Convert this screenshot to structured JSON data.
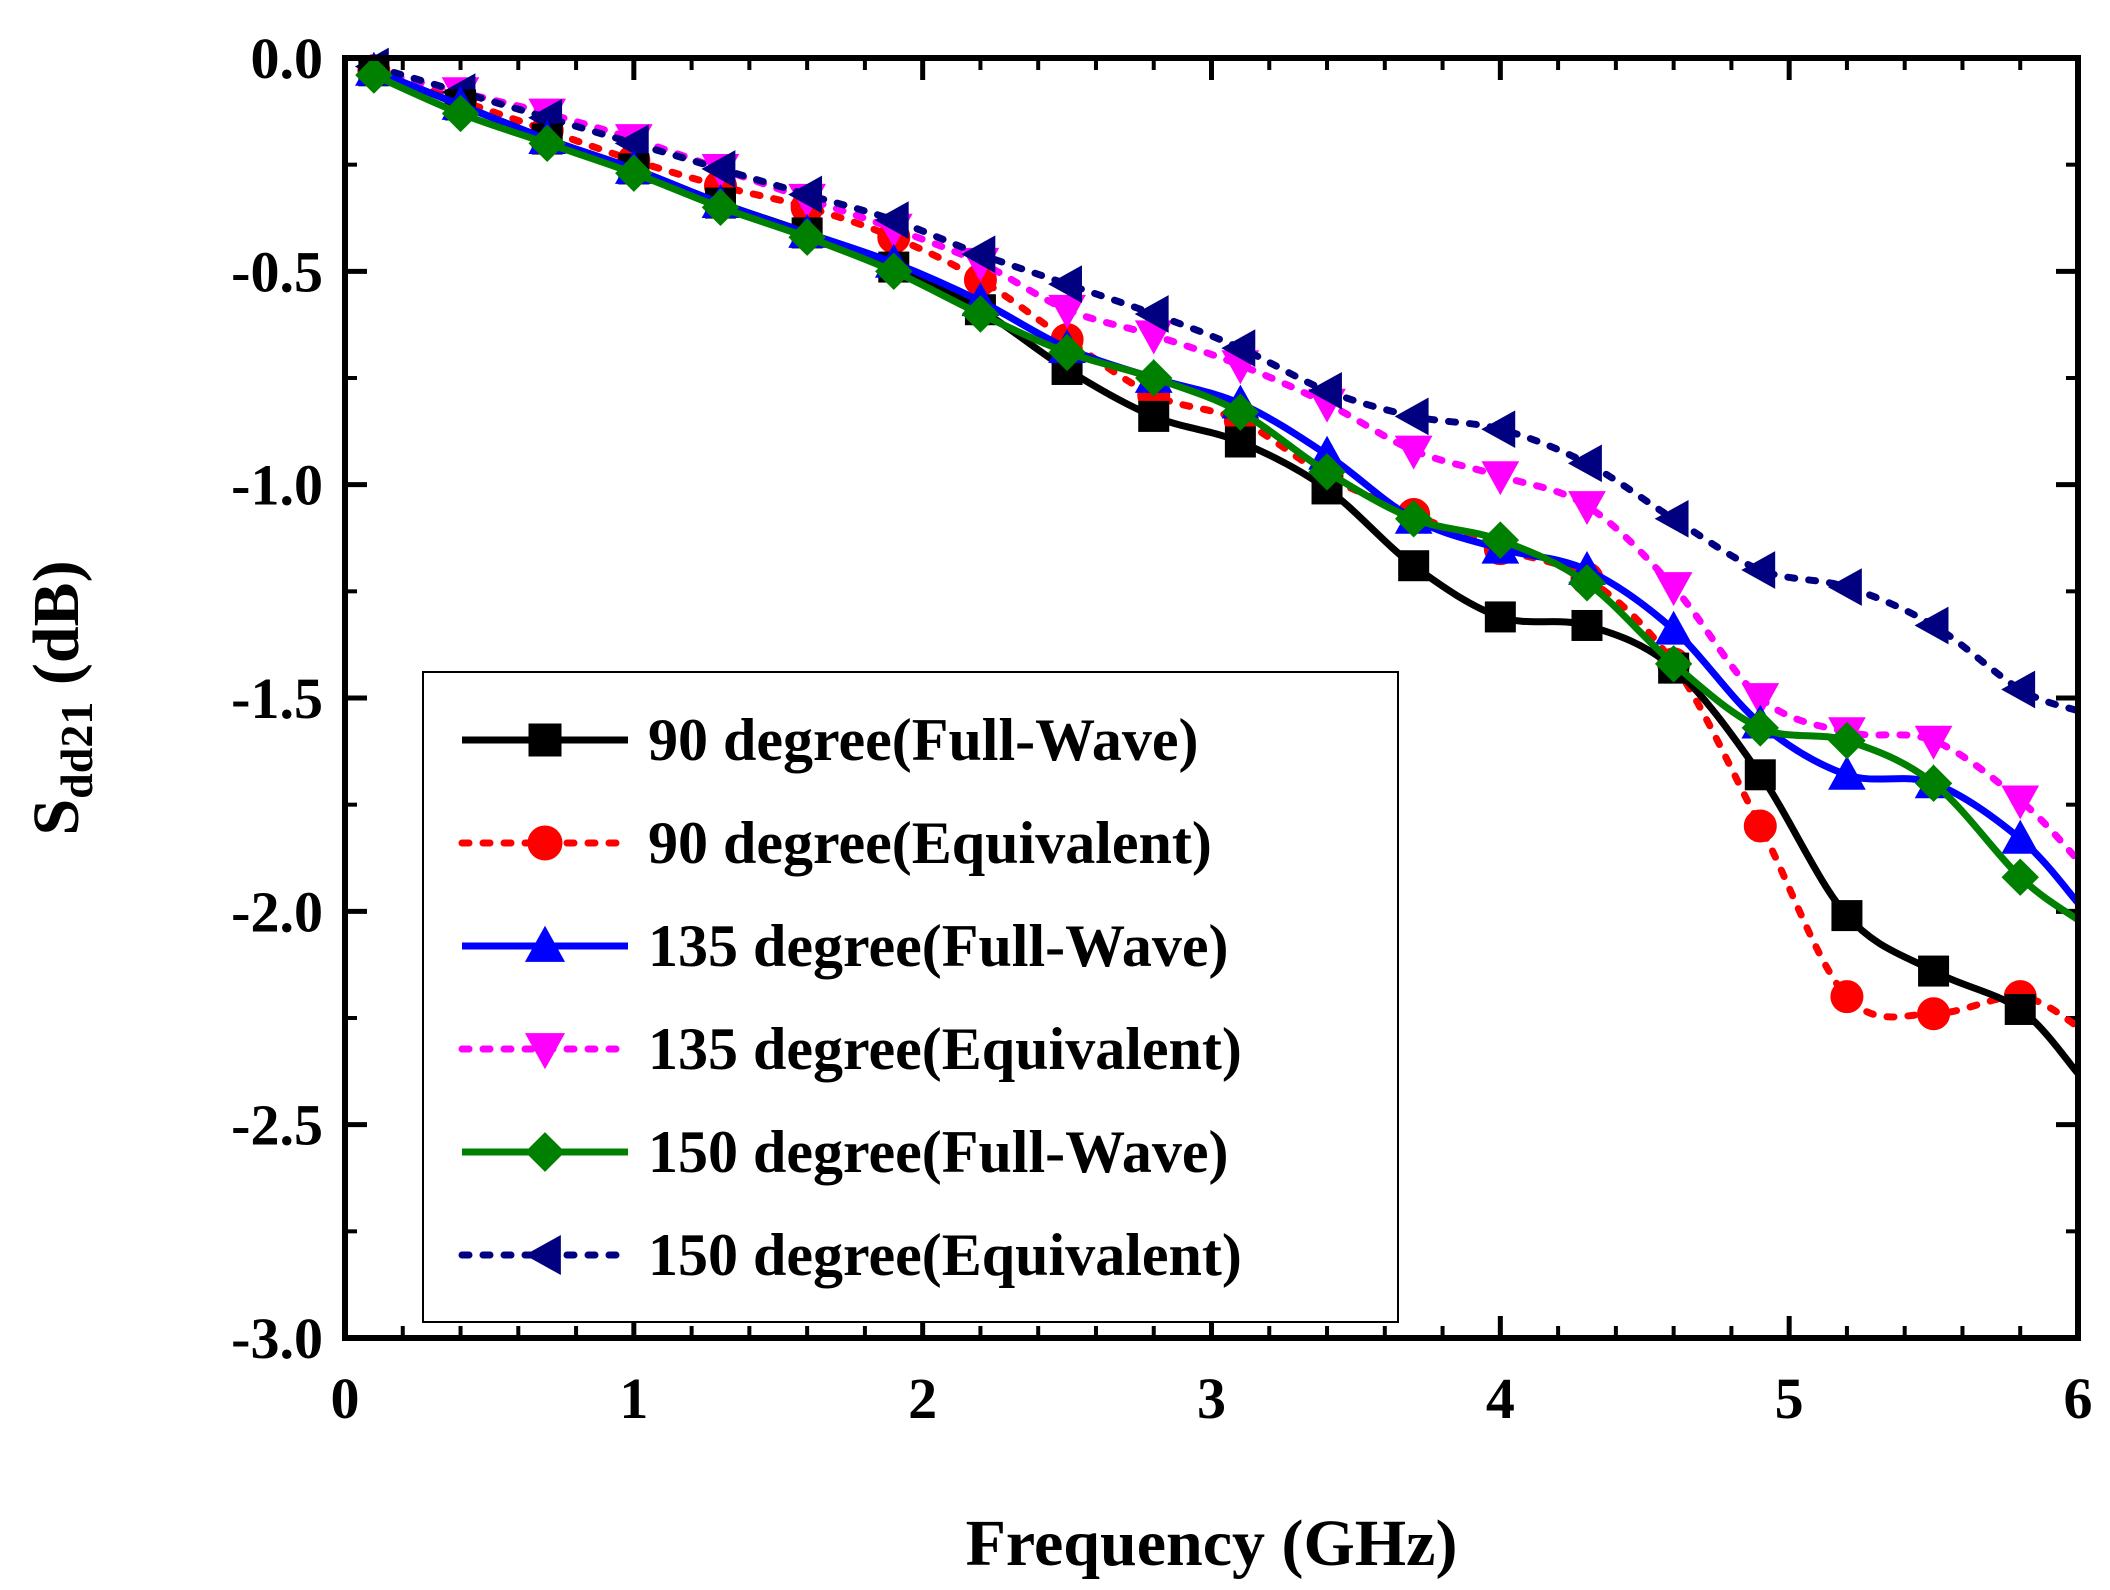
{
  "chart_data": {
    "type": "line",
    "xlabel": "Frequency (GHz)",
    "ylabel_main": "S",
    "ylabel_sub": "dd21",
    "ylabel_unit": " (dB)",
    "xlim": [
      0,
      6
    ],
    "ylim": [
      -3.0,
      0.0
    ],
    "xticks": [
      0,
      1,
      2,
      3,
      4,
      5,
      6
    ],
    "xtick_labels": [
      "0",
      "1",
      "2",
      "3",
      "4",
      "5",
      "6"
    ],
    "yticks": [
      0.0,
      -0.5,
      -1.0,
      -1.5,
      -2.0,
      -2.5,
      -3.0
    ],
    "ytick_labels": [
      "0.0",
      "-0.5",
      "-1.0",
      "-1.5",
      "-2.0",
      "-2.5",
      "-3.0"
    ],
    "legend_position": "bottom-left",
    "x": [
      0.1,
      0.4,
      0.7,
      1.0,
      1.3,
      1.6,
      1.9,
      2.2,
      2.5,
      2.8,
      3.1,
      3.4,
      3.7,
      4.0,
      4.3,
      4.6,
      4.9,
      5.2,
      5.5,
      5.8,
      6.0
    ],
    "series": [
      {
        "name": "90 degree(Full-Wave)",
        "color": "#000000",
        "line": "solid",
        "marker": "square",
        "values": [
          -0.03,
          -0.11,
          -0.19,
          -0.26,
          -0.34,
          -0.41,
          -0.49,
          -0.59,
          -0.73,
          -0.84,
          -0.9,
          -1.01,
          -1.19,
          -1.31,
          -1.33,
          -1.43,
          -1.68,
          -2.01,
          -2.14,
          -2.23,
          -2.38
        ]
      },
      {
        "name": "90 degree(Equivalent)",
        "color": "#ff0000",
        "line": "dotted",
        "marker": "circle",
        "values": [
          -0.03,
          -0.1,
          -0.17,
          -0.24,
          -0.3,
          -0.35,
          -0.42,
          -0.52,
          -0.66,
          -0.79,
          -0.85,
          -0.98,
          -1.07,
          -1.15,
          -1.22,
          -1.42,
          -1.8,
          -2.2,
          -2.24,
          -2.2,
          -2.27
        ]
      },
      {
        "name": "135 degree(Full-Wave)",
        "color": "#0000ff",
        "line": "solid",
        "marker": "triangle-up",
        "values": [
          -0.03,
          -0.11,
          -0.19,
          -0.26,
          -0.34,
          -0.41,
          -0.48,
          -0.57,
          -0.68,
          -0.75,
          -0.81,
          -0.93,
          -1.08,
          -1.15,
          -1.2,
          -1.34,
          -1.56,
          -1.68,
          -1.7,
          -1.83,
          -1.98
        ]
      },
      {
        "name": "135 degree(Equivalent)",
        "color": "#ff00ff",
        "line": "dotted",
        "marker": "triangle-down",
        "values": [
          -0.03,
          -0.08,
          -0.13,
          -0.19,
          -0.26,
          -0.33,
          -0.4,
          -0.48,
          -0.59,
          -0.65,
          -0.72,
          -0.81,
          -0.92,
          -0.98,
          -1.05,
          -1.24,
          -1.5,
          -1.58,
          -1.6,
          -1.74,
          -1.88
        ]
      },
      {
        "name": "150 degree(Full-Wave)",
        "color": "#008000",
        "line": "solid",
        "marker": "diamond",
        "values": [
          -0.04,
          -0.13,
          -0.2,
          -0.27,
          -0.35,
          -0.42,
          -0.5,
          -0.6,
          -0.69,
          -0.75,
          -0.83,
          -0.97,
          -1.08,
          -1.13,
          -1.23,
          -1.42,
          -1.57,
          -1.6,
          -1.7,
          -1.92,
          -2.02
        ]
      },
      {
        "name": "150 degree(Equivalent)",
        "color": "#000080",
        "line": "dotted",
        "marker": "triangle-left",
        "values": [
          -0.02,
          -0.08,
          -0.14,
          -0.2,
          -0.26,
          -0.32,
          -0.38,
          -0.46,
          -0.53,
          -0.6,
          -0.68,
          -0.78,
          -0.84,
          -0.87,
          -0.95,
          -1.08,
          -1.2,
          -1.24,
          -1.33,
          -1.48,
          -1.53
        ]
      }
    ]
  }
}
